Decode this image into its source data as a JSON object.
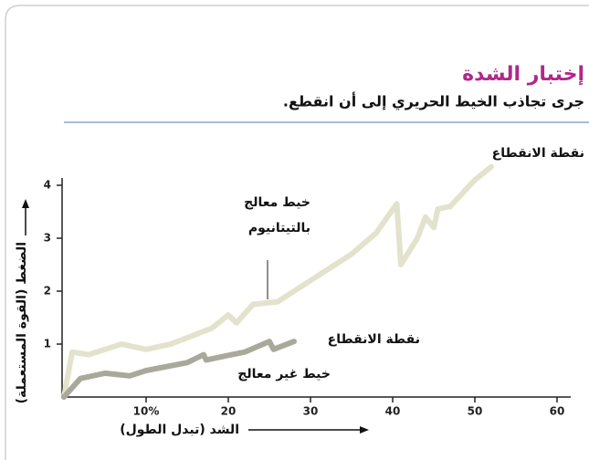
{
  "chart_data": {
    "type": "line",
    "title": "إختبار الشدة",
    "subtitle": "جرى تجاذب الخيط الحريري إلى أن انقطع.",
    "x_label": "الشد (تبدل الطول)",
    "y_label": "الضغط (القوة المستعملة)",
    "xlim": [
      0,
      60
    ],
    "xticks": [
      {
        "value": 10,
        "label": "10%"
      },
      20,
      30,
      40,
      50,
      60
    ],
    "ylim": [
      0,
      4
    ],
    "yticks": [
      1,
      2,
      3,
      4
    ],
    "series": [
      {
        "color": "#e3e2cc",
        "x": [
          0,
          1,
          3,
          7,
          10,
          13,
          18,
          20,
          21,
          23,
          26,
          30,
          35,
          38,
          40.5,
          41,
          43,
          44,
          45,
          45.5,
          47,
          50,
          52
        ],
        "values": [
          0,
          0.85,
          0.8,
          1.0,
          0.9,
          1.0,
          1.3,
          1.55,
          1.4,
          1.75,
          1.8,
          2.2,
          2.7,
          3.1,
          3.65,
          2.5,
          3.0,
          3.4,
          3.2,
          3.55,
          3.6,
          4.1,
          4.35
        ]
      },
      {
        "color": "#a9a99b",
        "x": [
          0,
          2,
          5,
          8,
          10,
          15,
          17,
          17.3,
          22,
          25,
          25.5,
          28
        ],
        "values": [
          0,
          0.35,
          0.45,
          0.4,
          0.5,
          0.65,
          0.8,
          0.7,
          0.85,
          1.05,
          0.9,
          1.05
        ]
      }
    ],
    "annotations": [
      "نقطة الانقطاع",
      "خيط معالج",
      "بالتيتانيوم",
      "نقطة الانقطاع",
      "خيط غير معالج"
    ]
  }
}
